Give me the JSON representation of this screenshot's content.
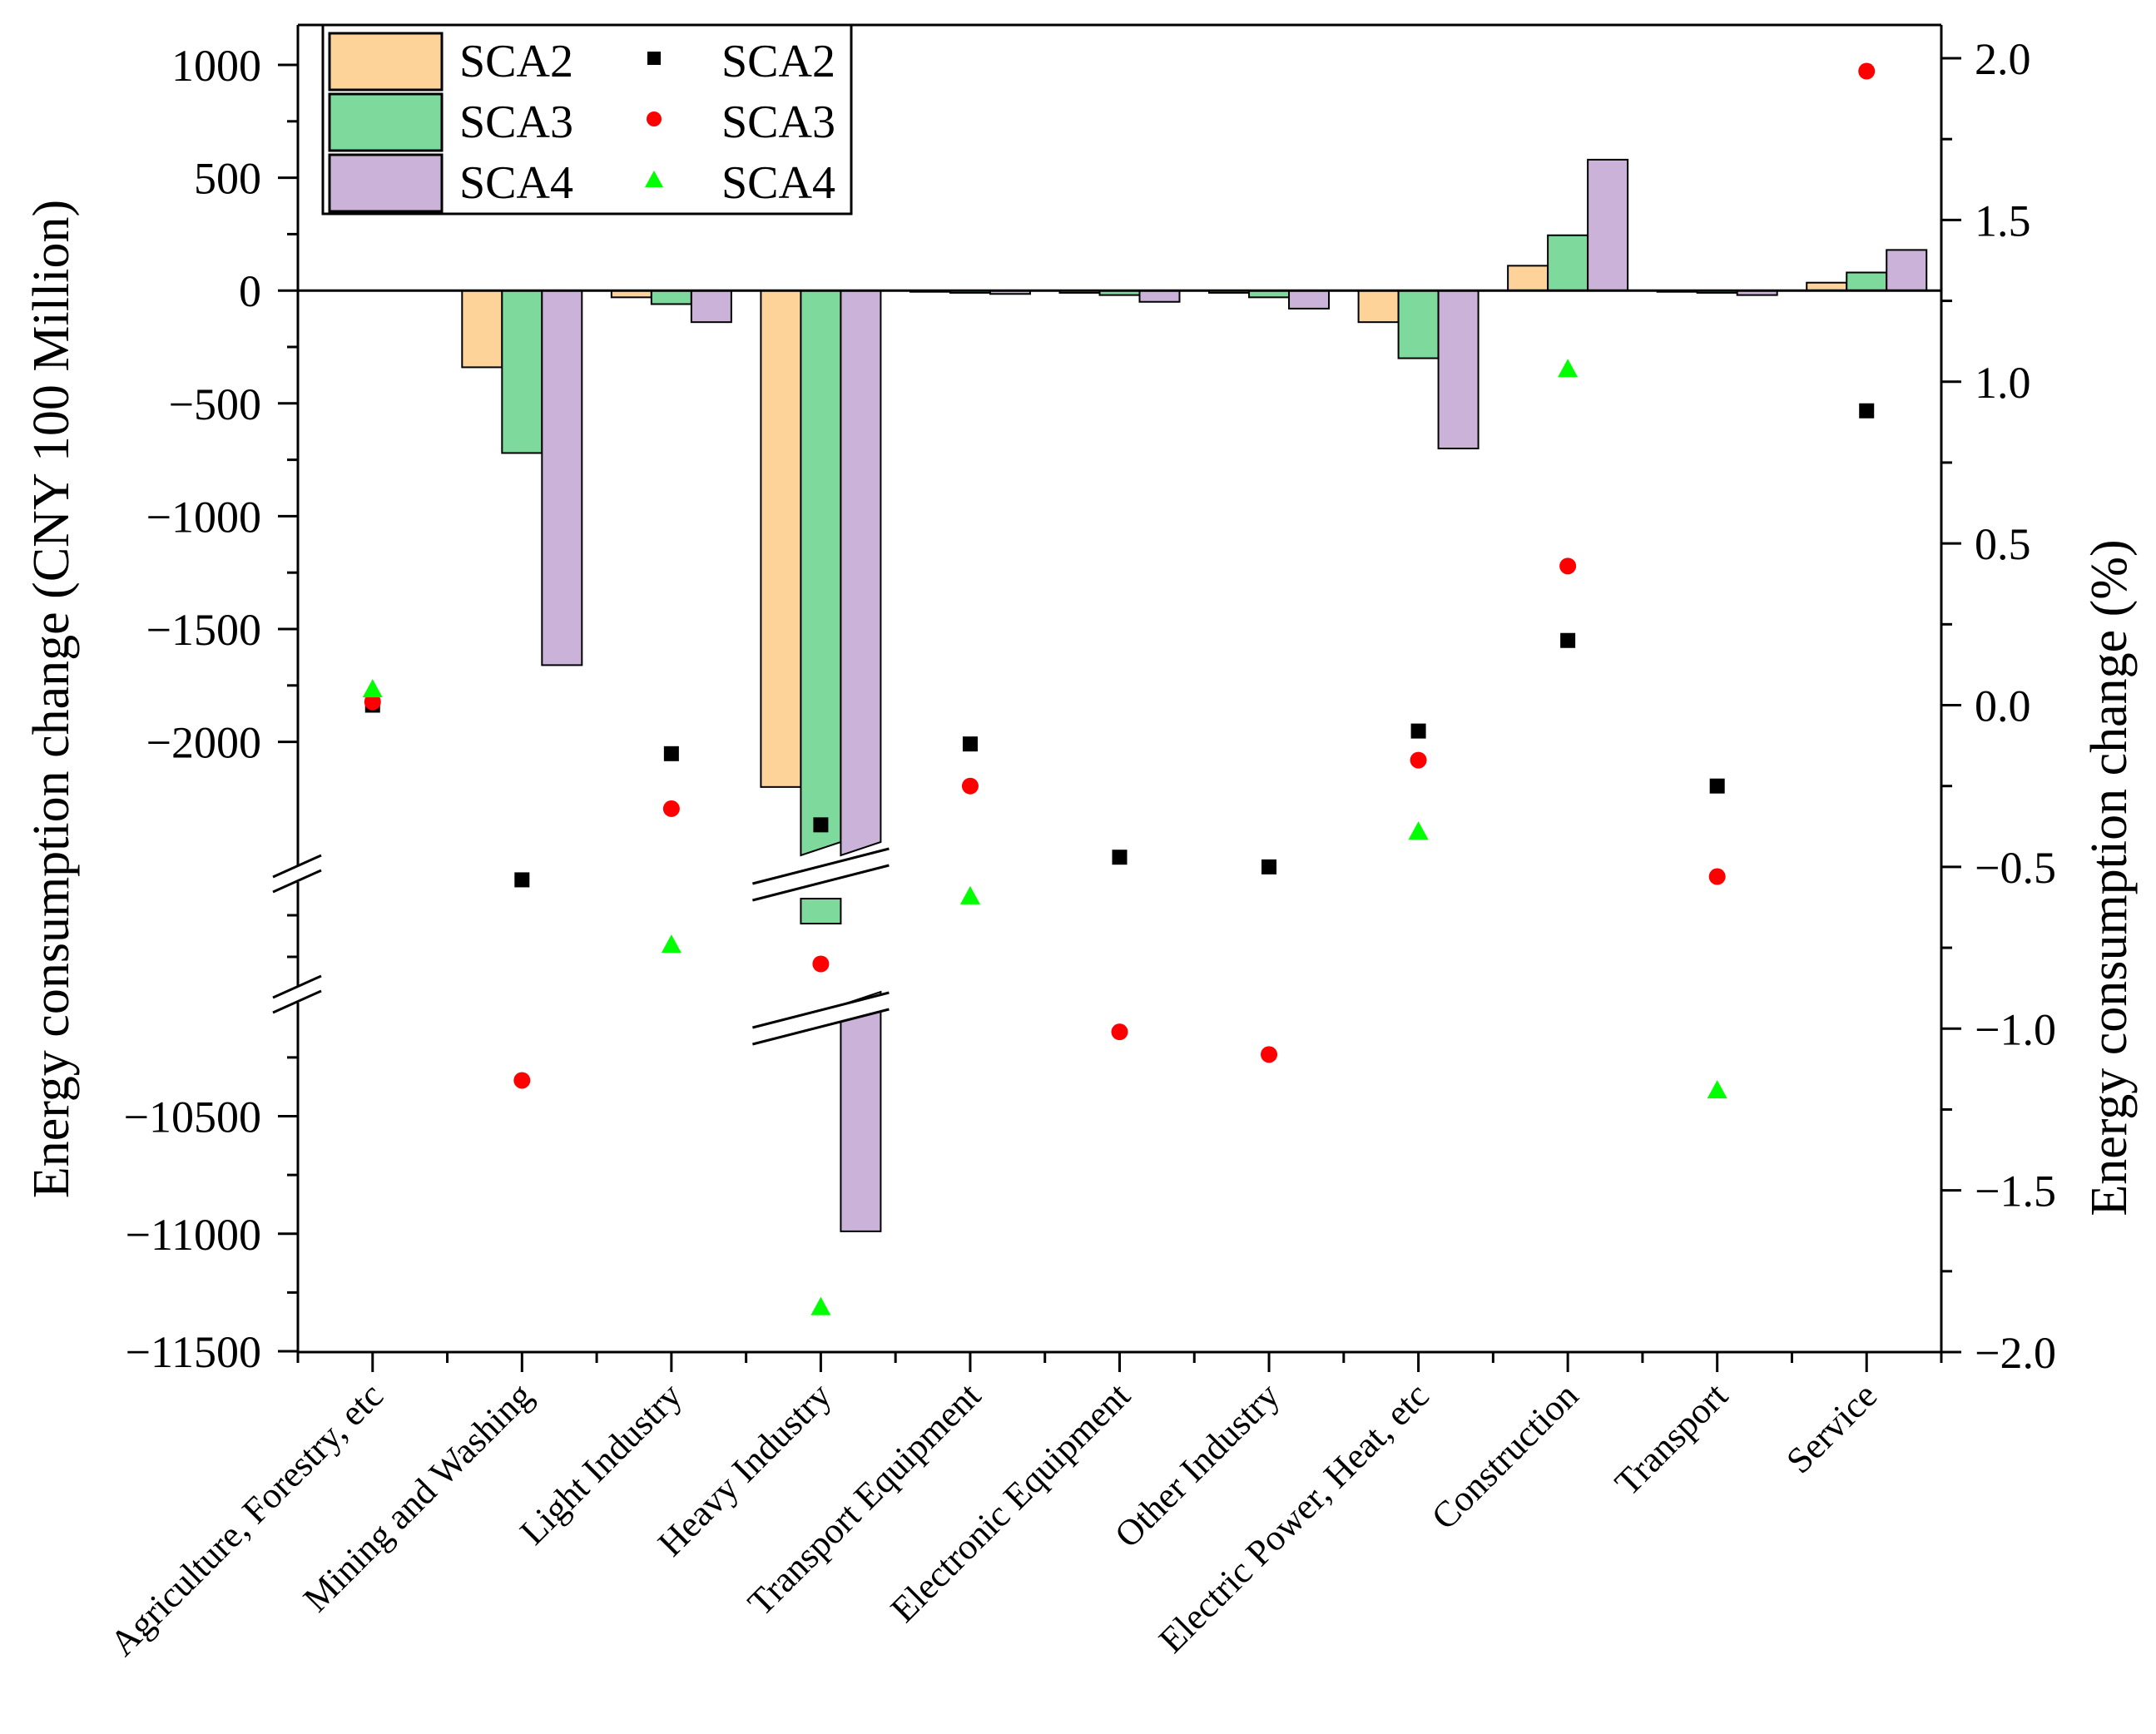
{
  "chart_data": {
    "type": "bar+scatter",
    "categories": [
      "Agriculture, Forestry, etc",
      "Mining and Washing",
      "Light Industry",
      "Heavy Industry",
      "Transport Equipment",
      "Electronic Equipment",
      "Other Industry",
      "Electric Power, Heat, etc",
      "Construction",
      "Transport",
      "Service"
    ],
    "left_axis": {
      "label": "Energy consumption change (CNY 100 Million)",
      "upper_segment": {
        "range": [
          -2250,
          1000
        ],
        "ticks": [
          "1000",
          "500",
          "0",
          "-500",
          "-1000",
          "-1500",
          "-2000"
        ]
      },
      "lower_segment": {
        "range": [
          -11500,
          -10150
        ],
        "ticks": [
          "-10500",
          "-11000",
          "-11500"
        ]
      },
      "break": true
    },
    "right_axis": {
      "label": "Energy consumption change (%)",
      "range": [
        -2.0,
        2.0
      ],
      "ticks": [
        "2.0",
        "1.5",
        "1.0",
        "0.5",
        "0.0",
        "-0.5",
        "-1.0",
        "-1.5",
        "-2.0"
      ]
    },
    "bar_series": [
      {
        "name": "SCA2",
        "color": "#fdd39a",
        "values": [
          0,
          -340,
          -30,
          -2200,
          -5,
          -10,
          -10,
          -140,
          110,
          -5,
          35
        ]
      },
      {
        "name": "SCA3",
        "color": "#7dd99c",
        "values": [
          0,
          -720,
          -60,
          -2820,
          -10,
          -20,
          -30,
          -300,
          245,
          -10,
          80
        ]
      },
      {
        "name": "SCA4",
        "color": "#cbb2d9",
        "values": [
          0,
          -1660,
          -140,
          -10990,
          -15,
          -50,
          -80,
          -700,
          580,
          -20,
          180
        ]
      }
    ],
    "scatter_series": [
      {
        "name": "SCA2",
        "marker": "square",
        "color": "#000000",
        "values": [
          0.0,
          -0.54,
          -0.15,
          -0.37,
          -0.12,
          -0.47,
          -0.5,
          -0.08,
          0.2,
          -0.25,
          0.91
        ]
      },
      {
        "name": "SCA3",
        "marker": "circle",
        "color": "#ff0000",
        "values": [
          0.01,
          -1.16,
          -0.32,
          -0.8,
          -0.25,
          -1.01,
          -1.08,
          -0.17,
          0.43,
          -0.53,
          1.96
        ]
      },
      {
        "name": "SCA4",
        "marker": "triangle",
        "color": "#00ff00",
        "values": [
          0.05,
          null,
          -0.74,
          -1.86,
          -0.59,
          null,
          null,
          -0.39,
          1.04,
          -1.19,
          null
        ]
      }
    ],
    "legend": {
      "position": "top-left",
      "bar_labels": [
        "SCA2",
        "SCA3",
        "SCA4"
      ],
      "scatter_labels": [
        "SCA2",
        "SCA3",
        "SCA4"
      ]
    }
  }
}
